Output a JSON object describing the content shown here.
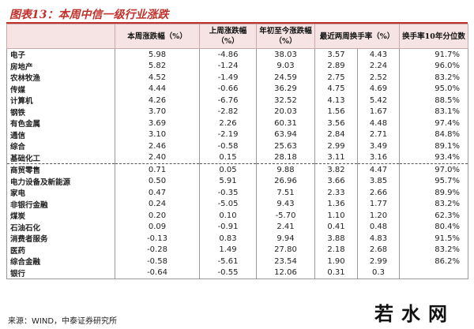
{
  "title": "图表13：本周中信一级行业涨跌",
  "headers": {
    "industry": "",
    "week_change": "本周涨跌幅（%）",
    "last_week_change": "上周涨跌幅（%）",
    "ytd_change": "年初至今涨跌幅（%）",
    "turnover_2w": "最近两周换手率（%）",
    "turnover_pct_10y": "换手率10年分位数"
  },
  "rows": [
    [
      "电子",
      "5.98",
      "-4.86",
      "38.03",
      "3.57",
      "4.43",
      "91.7%"
    ],
    [
      "房地产",
      "5.82",
      "-1.24",
      "9.03",
      "2.89",
      "2.24",
      "96.0%"
    ],
    [
      "农林牧渔",
      "4.52",
      "-1.49",
      "24.59",
      "2.75",
      "2.52",
      "83.2%"
    ],
    [
      "传媒",
      "4.44",
      "-0.66",
      "36.29",
      "4.75",
      "4.69",
      "95.0%"
    ],
    [
      "计算机",
      "4.26",
      "-6.76",
      "32.52",
      "4.13",
      "5.42",
      "88.5%"
    ],
    [
      "钢铁",
      "3.70",
      "-2.82",
      "20.03",
      "1.56",
      "1.67",
      "83.1%"
    ],
    [
      "有色金属",
      "3.69",
      "2.26",
      "60.31",
      "3.56",
      "4.48",
      "97.4%"
    ],
    [
      "通信",
      "3.10",
      "-2.19",
      "63.94",
      "2.84",
      "2.71",
      "84.8%"
    ],
    [
      "综合",
      "2.46",
      "-0.58",
      "25.63",
      "2.99",
      "3.49",
      "89.1%"
    ],
    [
      "基础化工",
      "2.40",
      "0.15",
      "28.18",
      "3.11",
      "3.16",
      "93.4%"
    ],
    [
      "商贸零售",
      "0.71",
      "0.05",
      "9.88",
      "3.82",
      "4.47",
      "97.0%"
    ],
    [
      "电力设备及新能源",
      "0.50",
      "5.91",
      "26.96",
      "3.66",
      "3.85",
      "95.7%"
    ],
    [
      "家电",
      "0.47",
      "-0.35",
      "7.51",
      "2.33",
      "2.66",
      "89.9%"
    ],
    [
      "非银行金融",
      "0.24",
      "-5.05",
      "9.43",
      "1.36",
      "1.77",
      "83.2%"
    ],
    [
      "煤炭",
      "0.20",
      "0.10",
      "-5.70",
      "1.10",
      "1.20",
      "62.3%"
    ],
    [
      "石油石化",
      "0.09",
      "-0.91",
      "2.41",
      "0.41",
      "0.48",
      "80.4%"
    ],
    [
      "消费者服务",
      "-0.13",
      "0.83",
      "9.94",
      "3.88",
      "4.83",
      "91.5%"
    ],
    [
      "医药",
      "-0.28",
      "1.49",
      "27.80",
      "2.18",
      "2.68",
      "83.2%"
    ],
    [
      "综合金融",
      "-0.58",
      "-5.61",
      "23.54",
      "1.90",
      "2.99",
      "86.2%"
    ],
    [
      "银行",
      "-0.64",
      "-0.55",
      "12.06",
      "0.31",
      "0.3",
      ""
    ]
  ],
  "source": "来源：WIND，中泰证券研究所",
  "watermark": "若水网"
}
